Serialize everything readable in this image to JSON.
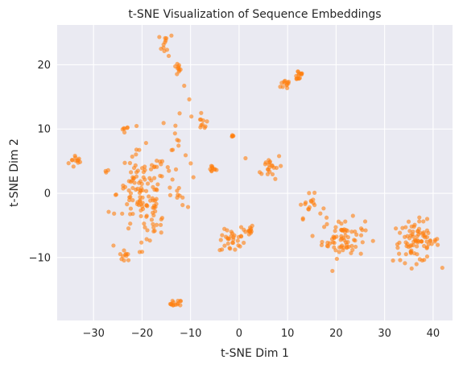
{
  "chart_data": {
    "type": "scatter",
    "title": "t-SNE Visualization of Sequence Embeddings",
    "xlabel": "t-SNE Dim 1",
    "ylabel": "t-SNE Dim 2",
    "xlim": [
      -37.5,
      44.0
    ],
    "ylim": [
      -19.8,
      26.2
    ],
    "xticks": [
      -30,
      -20,
      -10,
      0,
      10,
      20,
      30,
      40
    ],
    "yticks": [
      -10,
      0,
      10,
      20
    ],
    "grid": true,
    "legend": "none",
    "colors": {
      "background": "#eaeaf2",
      "grid": "#ffffff",
      "point": "#ff7f0e"
    },
    "marker_alpha": 0.6,
    "series": [
      {
        "clusters": [
          {
            "center": [
              -33.5,
              5.0
            ],
            "spread": [
              0.8,
              0.6
            ],
            "n": 12
          },
          {
            "center": [
              -27.5,
              3.8
            ],
            "spread": [
              0.6,
              0.3
            ],
            "n": 2
          },
          {
            "center": [
              -23.5,
              10.0
            ],
            "spread": [
              0.4,
              0.2
            ],
            "n": 6
          },
          {
            "center": [
              -23.5,
              -9.7
            ],
            "spread": [
              0.6,
              0.4
            ],
            "n": 10
          },
          {
            "center": [
              -13.0,
              -17.2
            ],
            "spread": [
              0.6,
              0.3
            ],
            "n": 14
          },
          {
            "center": [
              -15.0,
              23.2
            ],
            "spread": [
              0.7,
              0.9
            ],
            "n": 12
          },
          {
            "center": [
              -12.8,
              19.3
            ],
            "spread": [
              0.5,
              0.5
            ],
            "n": 10
          },
          {
            "center": [
              -7.5,
              11.0
            ],
            "spread": [
              0.5,
              0.6
            ],
            "n": 10
          },
          {
            "center": [
              -5.5,
              3.8
            ],
            "spread": [
              0.4,
              0.3
            ],
            "n": 10
          },
          {
            "center": [
              -1.5,
              -7.5
            ],
            "spread": [
              1.3,
              0.9
            ],
            "n": 30
          },
          {
            "center": [
              1.8,
              -5.8
            ],
            "spread": [
              0.6,
              0.5
            ],
            "n": 14
          },
          {
            "center": [
              -1.5,
              9.0
            ],
            "spread": [
              0.3,
              0.1
            ],
            "n": 5
          },
          {
            "center": [
              12.3,
              18.4
            ],
            "spread": [
              0.5,
              0.5
            ],
            "n": 14
          },
          {
            "center": [
              10.0,
              17.0
            ],
            "spread": [
              0.7,
              0.5
            ],
            "n": 12
          },
          {
            "center": [
              6.2,
              4.3
            ],
            "spread": [
              1.4,
              1.0
            ],
            "n": 22
          },
          {
            "center": [
              14.5,
              -2.0
            ],
            "spread": [
              1.3,
              0.9
            ],
            "n": 18
          },
          {
            "center": [
              21.5,
              -7.0
            ],
            "spread": [
              2.2,
              1.5
            ],
            "n": 70
          },
          {
            "center": [
              36.5,
              -7.5
            ],
            "spread": [
              2.4,
              1.6
            ],
            "n": 85
          },
          {
            "center": [
              -20.0,
              0.0
            ],
            "spread": [
              2.6,
              3.2
            ],
            "n": 110
          },
          {
            "center": [
              -12.5,
              6.0
            ],
            "spread": [
              2.0,
              4.5
            ],
            "n": 30
          },
          {
            "center": [
              -18.0,
              -5.0
            ],
            "spread": [
              1.5,
              2.0
            ],
            "n": 20
          }
        ]
      }
    ],
    "point_count_hint": 540
  }
}
